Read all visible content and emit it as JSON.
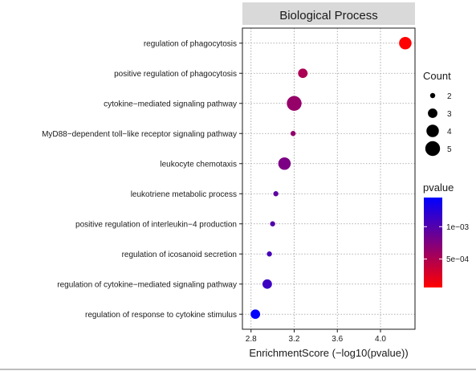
{
  "chart_data": {
    "type": "scatter",
    "title": "Biological Process",
    "xlabel": "EnrichmentScore (−log10(pvalue))",
    "ylabel": "",
    "xlim": [
      2.72,
      4.32
    ],
    "xticks": [
      2.8,
      3.2,
      3.6,
      4.0
    ],
    "xtick_labels": [
      "2.8",
      "3.2",
      "3.6",
      "4.0"
    ],
    "grid": true,
    "categories": [
      "regulation of phagocytosis",
      "positive regulation of phagocytosis",
      "cytokine−mediated signaling pathway",
      "MyD88−dependent toll−like receptor signaling pathway",
      "leukocyte chemotaxis",
      "leukotriene metabolic process",
      "positive regulation of interleukin−4 production",
      "regulation of icosanoid secretion",
      "regulation of cytokine−mediated signaling pathway",
      "regulation of response to cytokine stimulus"
    ],
    "series": [
      {
        "x": [
          4.23,
          3.28,
          3.2,
          3.19,
          3.11,
          3.03,
          3.0,
          2.97,
          2.95,
          2.84
        ],
        "count": [
          4,
          3,
          5,
          2,
          4,
          2,
          2,
          2,
          3,
          3
        ],
        "pvalue": [
          6e-05,
          0.00052,
          0.00063,
          0.00065,
          0.00078,
          0.00093,
          0.001,
          0.00107,
          0.00112,
          0.00145
        ]
      }
    ],
    "size_legend": {
      "title": "Count",
      "entries": [
        2,
        3,
        4,
        5
      ]
    },
    "color_legend": {
      "title": "pvalue",
      "colors": [
        "#FF0000",
        "#0000FF"
      ],
      "range": [
        6e-05,
        0.00145
      ],
      "ticks": [
        0.0005,
        0.001
      ],
      "tick_labels": [
        "5e−04",
        "1e−03"
      ]
    },
    "legend_position": "right"
  }
}
